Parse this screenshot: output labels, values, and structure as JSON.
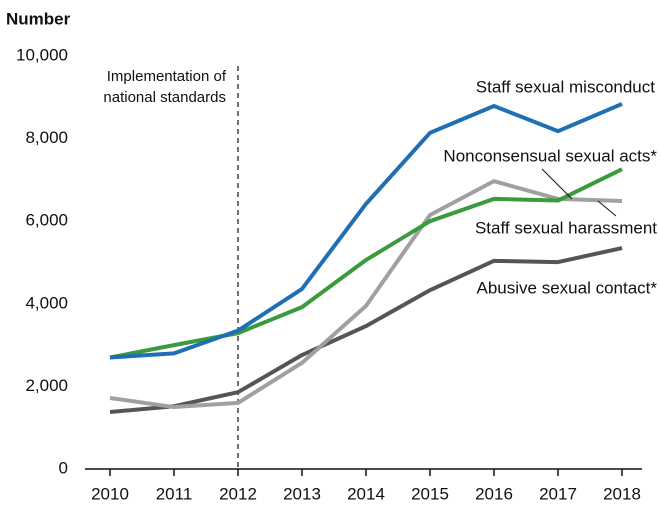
{
  "chart_data": {
    "type": "line",
    "y_label": "Number",
    "x": [
      2010,
      2011,
      2012,
      2013,
      2014,
      2015,
      2016,
      2017,
      2018
    ],
    "xlim": [
      2010,
      2018
    ],
    "xticks": [
      2010,
      2011,
      2012,
      2013,
      2014,
      2015,
      2016,
      2017,
      2018
    ],
    "ylim": [
      0,
      10000
    ],
    "yticks": [
      0,
      {
        "value": 2000,
        "label": "2,000"
      },
      {
        "value": 4000,
        "label": "4,000"
      },
      {
        "value": 6000,
        "label": "6,000"
      },
      {
        "value": 8000,
        "label": "8,000"
      },
      {
        "value": 10000,
        "label": "10,000"
      }
    ],
    "annotation": {
      "x": 2012,
      "text": [
        "Implementation of",
        "national standards"
      ]
    },
    "series": [
      {
        "name": "Staff sexual misconduct",
        "color": "#1f6fb5",
        "values": [
          2700,
          2800,
          3350,
          4360,
          6420,
          8140,
          8790,
          8180,
          8840
        ]
      },
      {
        "name": "Nonconsensual sexual acts*",
        "color": "#3a9a3d",
        "values": [
          2700,
          3000,
          3290,
          3920,
          5060,
          6000,
          6540,
          6500,
          7260
        ]
      },
      {
        "name": "Staff sexual harassment",
        "color": "#a0a0a0",
        "values": [
          1720,
          1500,
          1600,
          2570,
          3950,
          6150,
          6970,
          6540,
          6490
        ]
      },
      {
        "name": "Abusive sexual contact*",
        "color": "#555555",
        "values": [
          1380,
          1520,
          1860,
          2760,
          3460,
          4330,
          5040,
          5010,
          5350
        ]
      }
    ]
  }
}
